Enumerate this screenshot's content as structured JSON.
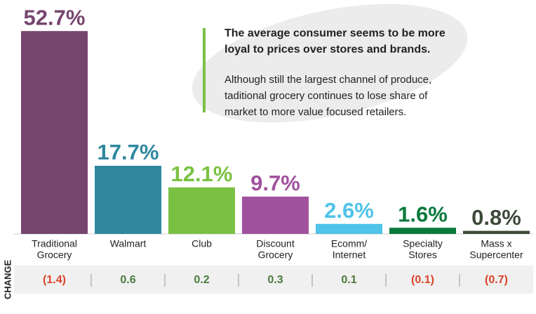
{
  "chart_data": {
    "type": "bar",
    "categories": [
      [
        "Traditional",
        "Grocery"
      ],
      [
        "Walmart"
      ],
      [
        "Club"
      ],
      [
        "Discount",
        "Grocery"
      ],
      [
        "Ecomm/",
        "Internet"
      ],
      [
        "Specialty",
        "Stores"
      ],
      [
        "Mass x",
        "Supercenter"
      ]
    ],
    "values": [
      52.7,
      17.7,
      12.1,
      9.7,
      2.6,
      1.6,
      0.8
    ],
    "value_labels": [
      "52.7%",
      "17.7%",
      "12.1%",
      "9.7%",
      "2.6%",
      "1.6%",
      "0.8%"
    ],
    "colors": [
      "#774670",
      "#2f88a0",
      "#7ac143",
      "#a0529e",
      "#4fc3e8",
      "#0a7a3c",
      "#3d4a3a"
    ],
    "change": {
      "label": "CHANGE",
      "values": [
        -1.4,
        0.6,
        0.2,
        0.3,
        0.1,
        -0.1,
        -0.7
      ],
      "value_labels": [
        "(1.4)",
        "0.6",
        "0.2",
        "0.3",
        "0.1",
        "(0.1)",
        "(0.7)"
      ],
      "positive_color": "#4a7a3a",
      "negative_color": "#d9442a"
    },
    "annotation": {
      "headline": [
        "The average consumer seems to be more",
        "loyal to prices over stores and brands."
      ],
      "body": [
        "Although still the largest channel of produce,",
        "taditional grocery continues to lose share of",
        "market to more value focused retailers."
      ]
    }
  }
}
